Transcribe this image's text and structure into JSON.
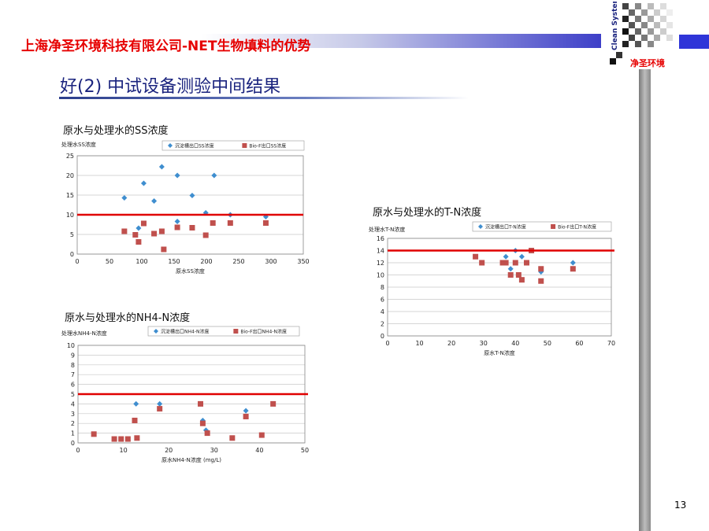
{
  "header": {
    "company_title": "上海净圣环境科技有限公司-NET生物填料的优势",
    "logo_text": "Clean System",
    "logo_cn": "净圣环境"
  },
  "slide": {
    "title": "好(2) 中试设备测验中间结果",
    "page_number": "13"
  },
  "colors": {
    "series_a": "#3f8ecf",
    "series_b": "#c0504d",
    "reference_line": "#e00000",
    "title": "#1a237e",
    "company": "#e60000"
  },
  "chart_data": [
    {
      "type": "scatter",
      "title": "原水与处理水的SS浓度",
      "xlabel": "原水SS浓度",
      "ylabel": "处理水SS浓度",
      "xlim": [
        0,
        350
      ],
      "ylim": [
        0,
        25
      ],
      "xticks": [
        "0",
        "50",
        "100",
        "150",
        "200",
        "250",
        "300",
        "350"
      ],
      "yticks": [
        "0",
        "5",
        "10",
        "15",
        "20",
        "25"
      ],
      "grid": true,
      "legend_position": "top",
      "reference_line": 10,
      "series": [
        {
          "name": "沉淀槽出口SS浓度",
          "marker": "diamond",
          "points": [
            [
              73,
              14.3
            ],
            [
              95,
              6.6
            ],
            [
              103,
              18
            ],
            [
              119,
              13.5
            ],
            [
              131,
              22.2
            ],
            [
              155,
              20
            ],
            [
              155,
              8.3
            ],
            [
              178,
              14.9
            ],
            [
              199,
              10.5
            ],
            [
              212,
              20
            ],
            [
              237,
              10
            ],
            [
              292,
              9.5
            ]
          ]
        },
        {
          "name": "Bio-F出口SS浓度",
          "marker": "square",
          "points": [
            [
              73,
              5.8
            ],
            [
              90,
              4.9
            ],
            [
              95,
              3.1
            ],
            [
              103,
              7.8
            ],
            [
              119,
              5.2
            ],
            [
              131,
              5.8
            ],
            [
              134,
              1.2
            ],
            [
              155,
              6.8
            ],
            [
              178,
              6.7
            ],
            [
              199,
              4.8
            ],
            [
              210,
              7.9
            ],
            [
              237,
              7.9
            ],
            [
              292,
              7.9
            ]
          ]
        }
      ]
    },
    {
      "type": "scatter",
      "title": "原水与处理水的T-N浓度",
      "xlabel": "原水T-N浓度",
      "ylabel": "处理水T-N浓度",
      "xlim": [
        0,
        70
      ],
      "ylim": [
        0,
        16
      ],
      "xticks": [
        "0",
        "10",
        "20",
        "30",
        "40",
        "50",
        "60",
        "70"
      ],
      "yticks": [
        "0",
        "2",
        "4",
        "6",
        "8",
        "10",
        "12",
        "14",
        "16"
      ],
      "grid": true,
      "legend_position": "top",
      "reference_line": 14,
      "series": [
        {
          "name": "沉淀槽出口T-N浓度",
          "marker": "diamond",
          "points": [
            [
              37,
              13
            ],
            [
              38.5,
              11
            ],
            [
              40,
              14
            ],
            [
              42,
              13
            ],
            [
              45,
              14
            ],
            [
              48,
              10.5
            ],
            [
              58,
              12
            ]
          ]
        },
        {
          "name": "Bio-F出口T-N浓度",
          "marker": "square",
          "points": [
            [
              27.5,
              13
            ],
            [
              29.5,
              12
            ],
            [
              36,
              12
            ],
            [
              37,
              12
            ],
            [
              38.5,
              10
            ],
            [
              40,
              12
            ],
            [
              41,
              10
            ],
            [
              42,
              9.2
            ],
            [
              43.5,
              12
            ],
            [
              45,
              14
            ],
            [
              48,
              11
            ],
            [
              48,
              9
            ],
            [
              58,
              11
            ]
          ]
        }
      ]
    },
    {
      "type": "scatter",
      "title": "原水与处理水的NH4-N浓度",
      "xlabel": "原水NH4-N浓度 (mg/L)",
      "ylabel": "处理水NH4-N浓度",
      "xlim": [
        0,
        50
      ],
      "ylim": [
        0,
        10
      ],
      "xticks": [
        "0",
        "10",
        "20",
        "30",
        "40",
        "50"
      ],
      "yticks": [
        "0",
        "1",
        "2",
        "3",
        "4",
        "5",
        "6",
        "7",
        "8",
        "9",
        "10"
      ],
      "grid": true,
      "legend_position": "top",
      "reference_line": 5,
      "series": [
        {
          "name": "沉淀槽出口NH4-N浓度",
          "marker": "diamond",
          "points": [
            [
              3.5,
              0.9
            ],
            [
              12.8,
              4
            ],
            [
              18,
              4
            ],
            [
              27.5,
              2.3
            ],
            [
              28.2,
              1.3
            ],
            [
              37,
              3.3
            ]
          ]
        },
        {
          "name": "Bio-F出口NH4-N浓度",
          "marker": "square",
          "points": [
            [
              3.5,
              0.9
            ],
            [
              8,
              0.4
            ],
            [
              9.5,
              0.4
            ],
            [
              11,
              0.4
            ],
            [
              12.5,
              2.3
            ],
            [
              13,
              0.5
            ],
            [
              18,
              3.5
            ],
            [
              27,
              4
            ],
            [
              27.5,
              2
            ],
            [
              28.5,
              1
            ],
            [
              34,
              0.5
            ],
            [
              37,
              2.7
            ],
            [
              40.5,
              0.8
            ],
            [
              43,
              4
            ]
          ]
        }
      ]
    }
  ]
}
